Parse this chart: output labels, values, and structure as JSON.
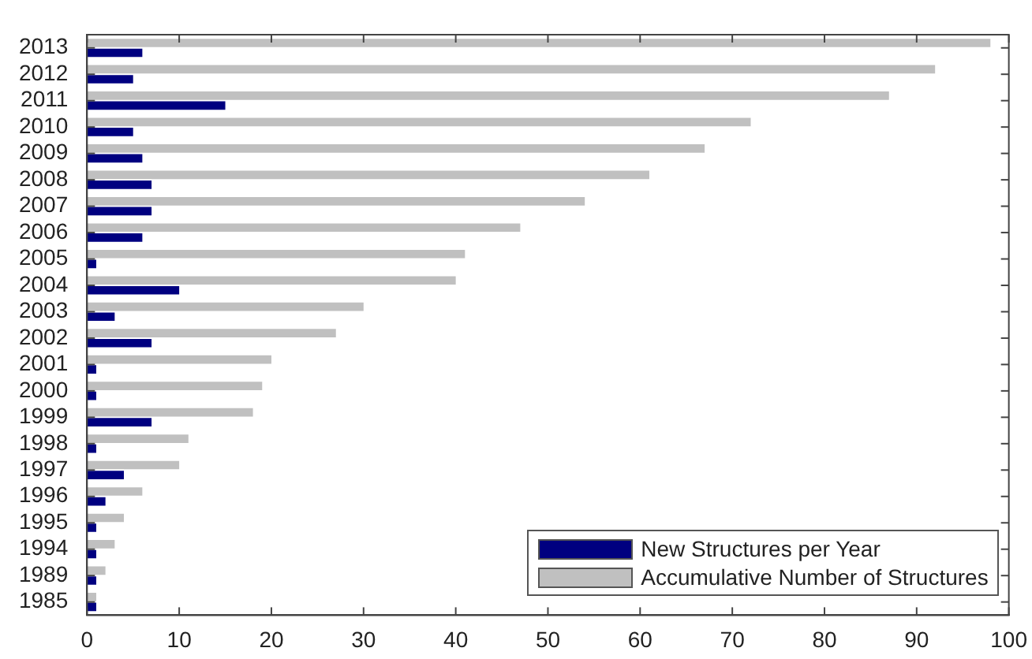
{
  "chart_data": {
    "type": "bar",
    "orientation": "horizontal",
    "categories": [
      "2013",
      "2012",
      "2011",
      "2010",
      "2009",
      "2008",
      "2007",
      "2006",
      "2005",
      "2004",
      "2003",
      "2002",
      "2001",
      "2000",
      "1999",
      "1998",
      "1997",
      "1996",
      "1995",
      "1994",
      "1989",
      "1985"
    ],
    "series": [
      {
        "name": "New Structures per Year",
        "color": "#000080",
        "values": [
          6,
          5,
          15,
          5,
          6,
          7,
          7,
          6,
          1,
          10,
          3,
          7,
          1,
          1,
          7,
          1,
          4,
          2,
          1,
          1,
          1,
          1
        ]
      },
      {
        "name": "Accumulative Number of Structures",
        "color": "#c0c0c0",
        "values": [
          98,
          92,
          87,
          72,
          67,
          61,
          54,
          47,
          41,
          40,
          30,
          27,
          20,
          19,
          18,
          11,
          10,
          6,
          4,
          3,
          2,
          1
        ]
      }
    ],
    "xlim": [
      0,
      100
    ],
    "xticks": [
      0,
      10,
      20,
      30,
      40,
      50,
      60,
      70,
      80,
      90,
      100
    ],
    "grid": false,
    "legend": "bottom right"
  }
}
